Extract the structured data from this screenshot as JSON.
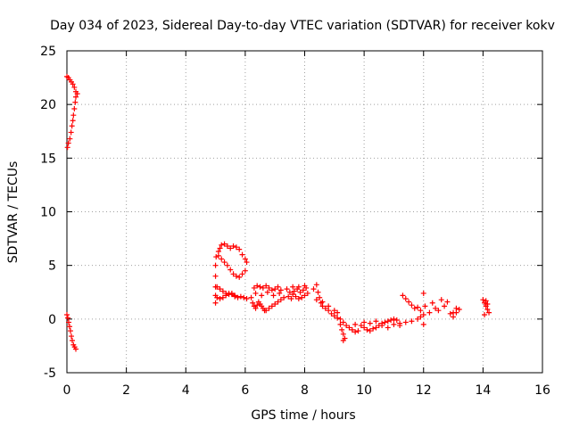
{
  "chart_data": {
    "type": "scatter",
    "title": "Day 034 of 2023, Sidereal Day-to-day VTEC variation (SDTVAR) for receiver kokv",
    "xlabel": "GPS time / hours",
    "ylabel": "SDTVAR / TECUs",
    "xlim": [
      0,
      16
    ],
    "ylim": [
      -5,
      25
    ],
    "xticks": [
      0,
      2,
      4,
      6,
      8,
      10,
      12,
      14,
      16
    ],
    "yticks": [
      -5,
      0,
      5,
      10,
      15,
      20,
      25
    ],
    "grid": true,
    "marker": "+",
    "series": [
      {
        "name": "SDTVAR",
        "color": "#ff0000",
        "points": [
          [
            0.0,
            22.6
          ],
          [
            0.05,
            22.5
          ],
          [
            0.1,
            22.3
          ],
          [
            0.15,
            22.1
          ],
          [
            0.2,
            21.9
          ],
          [
            0.25,
            21.6
          ],
          [
            0.3,
            21.2
          ],
          [
            0.35,
            21.0
          ],
          [
            0.3,
            20.7
          ],
          [
            0.28,
            20.2
          ],
          [
            0.25,
            19.6
          ],
          [
            0.22,
            19.0
          ],
          [
            0.2,
            18.5
          ],
          [
            0.17,
            18.0
          ],
          [
            0.14,
            17.4
          ],
          [
            0.1,
            16.8
          ],
          [
            0.05,
            16.4
          ],
          [
            0.02,
            16.0
          ],
          [
            0.0,
            0.4
          ],
          [
            0.03,
            0.1
          ],
          [
            0.06,
            -0.3
          ],
          [
            0.09,
            -0.7
          ],
          [
            0.12,
            -1.1
          ],
          [
            0.15,
            -1.6
          ],
          [
            0.18,
            -2.0
          ],
          [
            0.22,
            -2.4
          ],
          [
            0.26,
            -2.6
          ],
          [
            0.3,
            -2.8
          ],
          [
            5.0,
            1.5
          ],
          [
            5.0,
            2.2
          ],
          [
            5.0,
            3.0
          ],
          [
            5.0,
            4.0
          ],
          [
            5.0,
            5.0
          ],
          [
            5.02,
            5.8
          ],
          [
            5.1,
            6.3
          ],
          [
            5.15,
            6.6
          ],
          [
            5.2,
            6.9
          ],
          [
            5.3,
            7.0
          ],
          [
            5.4,
            6.8
          ],
          [
            5.5,
            6.6
          ],
          [
            5.6,
            6.8
          ],
          [
            5.7,
            6.7
          ],
          [
            5.8,
            6.5
          ],
          [
            5.9,
            6.0
          ],
          [
            6.0,
            5.6
          ],
          [
            6.05,
            5.3
          ],
          [
            5.1,
            5.9
          ],
          [
            5.2,
            5.6
          ],
          [
            5.3,
            5.3
          ],
          [
            5.4,
            5.0
          ],
          [
            5.5,
            4.6
          ],
          [
            5.6,
            4.2
          ],
          [
            5.7,
            4.0
          ],
          [
            5.8,
            3.9
          ],
          [
            5.9,
            4.2
          ],
          [
            6.0,
            4.5
          ],
          [
            5.05,
            3.0
          ],
          [
            5.15,
            2.8
          ],
          [
            5.25,
            2.6
          ],
          [
            5.35,
            2.4
          ],
          [
            5.45,
            2.3
          ],
          [
            5.55,
            2.4
          ],
          [
            5.65,
            2.2
          ],
          [
            5.75,
            2.0
          ],
          [
            5.85,
            2.1
          ],
          [
            5.95,
            2.0
          ],
          [
            6.05,
            1.9
          ],
          [
            5.05,
            2.0
          ],
          [
            5.15,
            1.9
          ],
          [
            5.25,
            2.0
          ],
          [
            5.35,
            2.2
          ],
          [
            5.45,
            2.4
          ],
          [
            5.55,
            2.3
          ],
          [
            5.65,
            2.1
          ],
          [
            6.2,
            2.0
          ],
          [
            6.25,
            1.5
          ],
          [
            6.3,
            1.2
          ],
          [
            6.35,
            1.0
          ],
          [
            6.4,
            1.3
          ],
          [
            6.45,
            1.6
          ],
          [
            6.5,
            1.4
          ],
          [
            6.55,
            1.2
          ],
          [
            6.6,
            1.0
          ],
          [
            6.65,
            0.8
          ],
          [
            6.7,
            0.8
          ],
          [
            6.8,
            1.0
          ],
          [
            6.9,
            1.2
          ],
          [
            7.0,
            1.4
          ],
          [
            7.1,
            1.6
          ],
          [
            7.2,
            1.8
          ],
          [
            7.3,
            2.0
          ],
          [
            6.3,
            2.9
          ],
          [
            6.4,
            3.1
          ],
          [
            6.5,
            3.0
          ],
          [
            6.6,
            2.9
          ],
          [
            6.7,
            3.1
          ],
          [
            6.8,
            2.9
          ],
          [
            6.9,
            2.7
          ],
          [
            7.0,
            2.8
          ],
          [
            7.1,
            3.0
          ],
          [
            7.2,
            2.7
          ],
          [
            6.35,
            2.4
          ],
          [
            6.55,
            2.2
          ],
          [
            6.75,
            2.5
          ],
          [
            6.95,
            2.2
          ],
          [
            7.15,
            2.4
          ],
          [
            7.4,
            2.8
          ],
          [
            7.5,
            2.5
          ],
          [
            7.6,
            2.3
          ],
          [
            7.7,
            2.1
          ],
          [
            7.8,
            1.9
          ],
          [
            7.9,
            2.0
          ],
          [
            8.0,
            2.2
          ],
          [
            7.45,
            2.1
          ],
          [
            7.55,
            1.9
          ],
          [
            7.65,
            2.6
          ],
          [
            7.75,
            2.8
          ],
          [
            7.85,
            2.5
          ],
          [
            7.95,
            2.7
          ],
          [
            8.05,
            2.9
          ],
          [
            8.1,
            2.4
          ],
          [
            7.6,
            3.0
          ],
          [
            7.8,
            3.0
          ],
          [
            8.0,
            3.1
          ],
          [
            8.3,
            2.8
          ],
          [
            8.4,
            3.2
          ],
          [
            8.45,
            2.5
          ],
          [
            8.5,
            2.0
          ],
          [
            8.55,
            1.5
          ],
          [
            8.6,
            1.2
          ],
          [
            8.7,
            1.0
          ],
          [
            8.8,
            0.8
          ],
          [
            8.9,
            0.5
          ],
          [
            9.0,
            0.3
          ],
          [
            9.1,
            0.1
          ],
          [
            9.2,
            0.0
          ],
          [
            9.3,
            -0.3
          ],
          [
            9.4,
            -0.6
          ],
          [
            9.5,
            -0.8
          ],
          [
            9.6,
            -1.0
          ],
          [
            9.7,
            -1.2
          ],
          [
            9.8,
            -1.1
          ],
          [
            8.4,
            1.8
          ],
          [
            8.6,
            1.6
          ],
          [
            8.8,
            1.2
          ],
          [
            9.0,
            0.8
          ],
          [
            9.1,
            0.6
          ],
          [
            9.2,
            -0.5
          ],
          [
            9.25,
            -1.0
          ],
          [
            9.3,
            -1.4
          ],
          [
            9.35,
            -1.8
          ],
          [
            9.3,
            -2.0
          ],
          [
            9.7,
            -0.5
          ],
          [
            9.9,
            -0.6
          ],
          [
            10.0,
            -0.8
          ],
          [
            10.1,
            -1.0
          ],
          [
            10.2,
            -1.1
          ],
          [
            10.3,
            -0.9
          ],
          [
            10.4,
            -0.8
          ],
          [
            10.5,
            -0.6
          ],
          [
            10.6,
            -0.4
          ],
          [
            10.7,
            -0.3
          ],
          [
            10.8,
            -0.2
          ],
          [
            10.9,
            -0.1
          ],
          [
            11.0,
            0.0
          ],
          [
            11.1,
            -0.1
          ],
          [
            11.2,
            -0.4
          ],
          [
            10.0,
            -0.3
          ],
          [
            10.2,
            -0.4
          ],
          [
            10.4,
            -0.2
          ],
          [
            10.6,
            -0.6
          ],
          [
            10.8,
            -0.8
          ],
          [
            11.0,
            -0.5
          ],
          [
            11.2,
            -0.6
          ],
          [
            11.4,
            -0.3
          ],
          [
            11.6,
            -0.2
          ],
          [
            11.8,
            0.0
          ],
          [
            11.9,
            0.2
          ],
          [
            12.0,
            0.4
          ],
          [
            11.3,
            2.2
          ],
          [
            11.4,
            1.9
          ],
          [
            11.5,
            1.6
          ],
          [
            11.6,
            1.3
          ],
          [
            11.7,
            1.0
          ],
          [
            11.8,
            1.1
          ],
          [
            11.9,
            0.8
          ],
          [
            12.0,
            2.4
          ],
          [
            12.05,
            1.2
          ],
          [
            12.0,
            -0.5
          ],
          [
            12.2,
            0.6
          ],
          [
            12.3,
            1.5
          ],
          [
            12.4,
            1.0
          ],
          [
            12.5,
            0.8
          ],
          [
            12.6,
            1.8
          ],
          [
            12.7,
            1.2
          ],
          [
            12.8,
            1.6
          ],
          [
            12.9,
            0.5
          ],
          [
            13.0,
            0.2
          ],
          [
            13.1,
            0.6
          ],
          [
            13.2,
            0.9
          ],
          [
            13.1,
            1.0
          ],
          [
            13.0,
            0.6
          ],
          [
            14.0,
            1.8
          ],
          [
            14.05,
            1.5
          ],
          [
            14.1,
            1.2
          ],
          [
            14.15,
            0.9
          ],
          [
            14.2,
            0.6
          ],
          [
            14.05,
            0.4
          ],
          [
            14.1,
            1.7
          ],
          [
            14.15,
            1.4
          ]
        ]
      }
    ]
  }
}
